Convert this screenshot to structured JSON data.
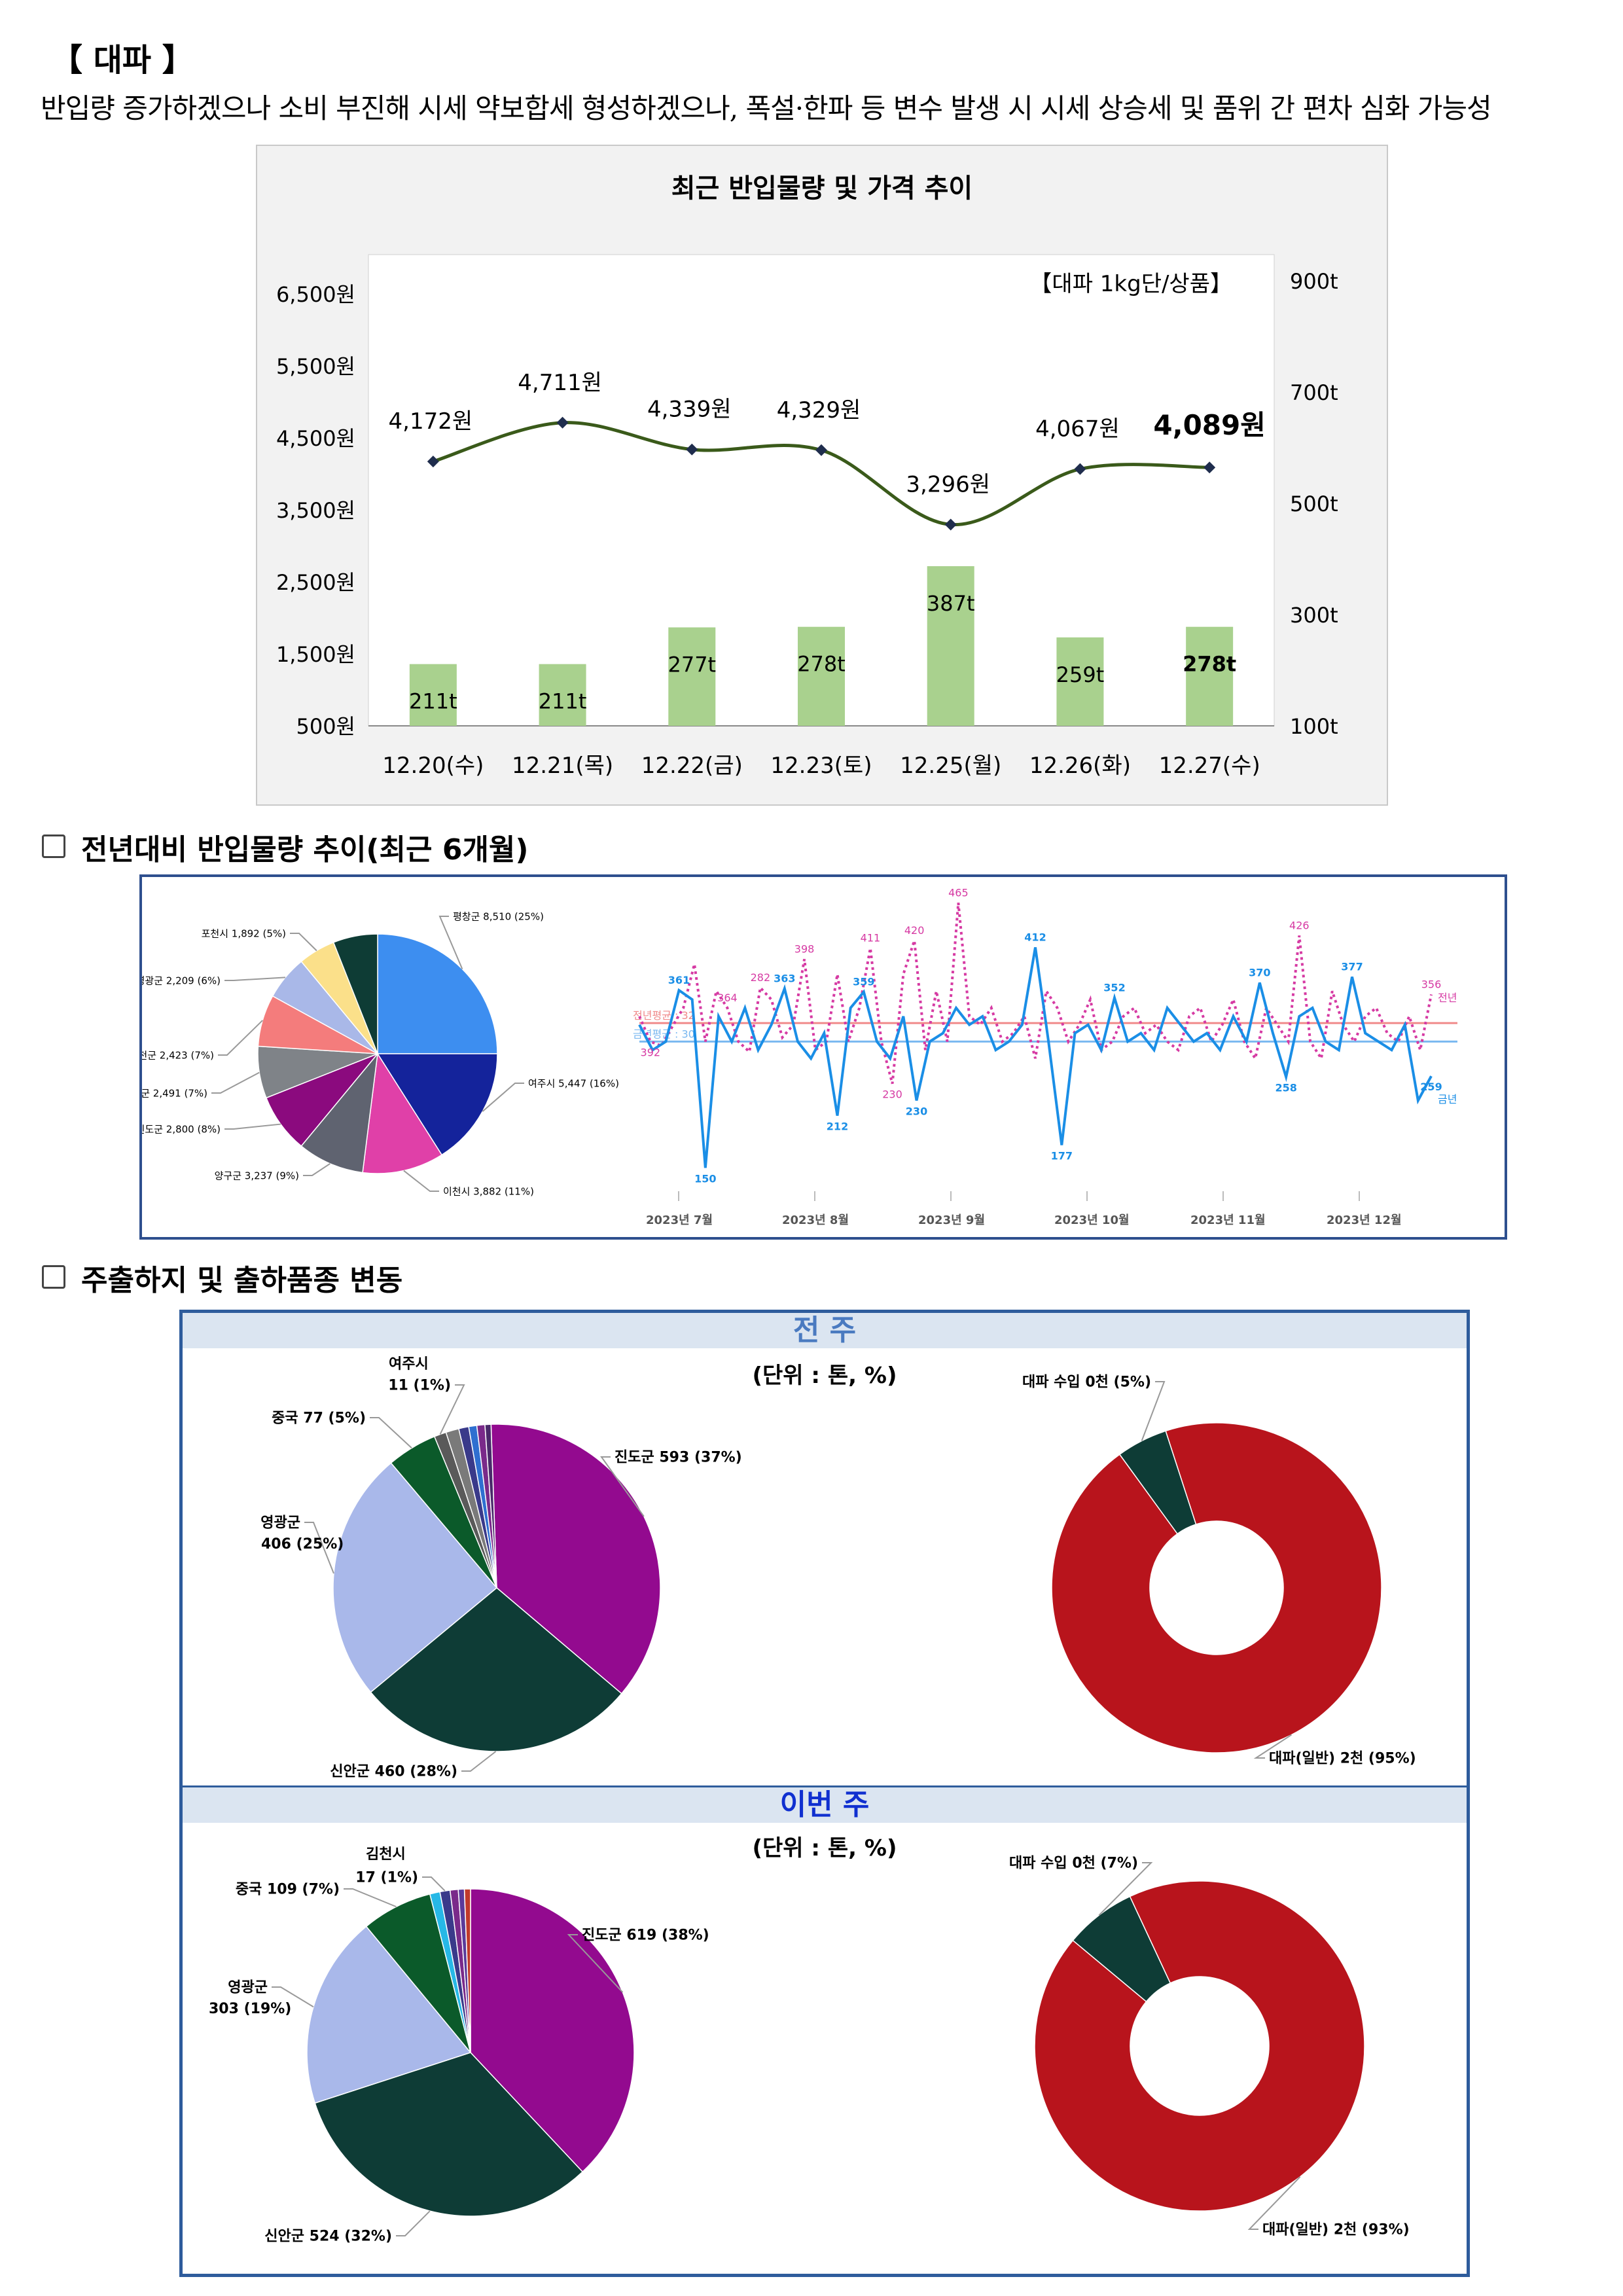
{
  "heading": "【 대파 】",
  "summary": "반입량 증가하겠으나 소비 부진해 시세 약보합세 형성하겠으나, 폭설·한파 등 변수 발생 시 시세 상승세 및 품위 간 편차 심화 가능성",
  "chart_data": [
    {
      "type": "bar+line",
      "title": "최근 반입물량 및 가격 추이",
      "annotation": "【대파 1kg단/상품】",
      "categories": [
        "12.20(수)",
        "12.21(목)",
        "12.22(금)",
        "12.23(토)",
        "12.25(월)",
        "12.26(화)",
        "12.27(수)"
      ],
      "series": [
        {
          "name": "price",
          "type": "line",
          "values": [
            4172,
            4711,
            4339,
            4329,
            3296,
            4067,
            4089
          ],
          "labels": [
            "4,172원",
            "4,711원",
            "4,339원",
            "4,329원",
            "3,296원",
            "4,067원",
            "4,089원"
          ]
        },
        {
          "name": "volume",
          "type": "bar",
          "values": [
            211,
            211,
            277,
            278,
            387,
            259,
            278
          ],
          "labels": [
            "211t",
            "211t",
            "277t",
            "278t",
            "387t",
            "259t",
            "278t"
          ]
        }
      ],
      "y_left": {
        "ticks": [
          "6,500원",
          "5,500원",
          "4,500원",
          "3,500원",
          "2,500원",
          "1,500원",
          "500원"
        ],
        "range": [
          500,
          6500
        ]
      },
      "y_right": {
        "ticks": [
          "900t",
          "700t",
          "500t",
          "300t",
          "100t"
        ],
        "range": [
          100,
          900
        ]
      },
      "colors": {
        "line": "#3a5a1a",
        "bar": "#a9d18e",
        "marker": "#1f2d4d"
      }
    },
    {
      "type": "pie",
      "slices": [
        {
          "label": "평창군 8,510 (25%)",
          "value": 25,
          "color": "#3d8ef0"
        },
        {
          "label": "여주시 5,447 (16%)",
          "value": 16,
          "color": "#14239b"
        },
        {
          "label": "이천시 3,882 (11%)",
          "value": 11,
          "color": "#e040a8"
        },
        {
          "label": "양구군 3,237 (9%)",
          "value": 9,
          "color": "#5f6370"
        },
        {
          "label": "진도군 2,800 (8%)",
          "value": 8,
          "color": "#8b0a7e"
        },
        {
          "label": "철원군 2,491 (7%)",
          "value": 7,
          "color": "#7f8388"
        },
        {
          "label": "홍천군 2,423 (7%)",
          "value": 7,
          "color": "#f47c7c"
        },
        {
          "label": "영광군 2,209 (6%)",
          "value": 6,
          "color": "#a9b8e8"
        },
        {
          "label": "포천시 1,892 (5%)",
          "value": 5,
          "color": "#fbe08a"
        },
        {
          "label": "",
          "value": 6,
          "color": "#0e3c35"
        }
      ]
    },
    {
      "type": "line",
      "x_labels": [
        "2023년 7월",
        "2023년 8월",
        "2023년 9월",
        "2023년 10월",
        "2023년 11월",
        "2023년 12월"
      ],
      "series": [
        {
          "name": "전년",
          "values": [
            330,
            300,
            295,
            318,
            340,
            392,
            300,
            360,
            340,
            300,
            288,
            364,
            350,
            305,
            320,
            398,
            290,
            300,
            380,
            300,
            340,
            411,
            300,
            250,
            380,
            420,
            290,
            360,
            300,
            465,
            330,
            320,
            340,
            300,
            310,
            330,
            280,
            360,
            340,
            300,
            320,
            350,
            290,
            300,
            330,
            340,
            310,
            320,
            300,
            290,
            330,
            340,
            300,
            320,
            350,
            300,
            280,
            340,
            320,
            300,
            426,
            300,
            280,
            360,
            320,
            300,
            330,
            340,
            310,
            300,
            330,
            290,
            356
          ]
        },
        {
          "name": "금년",
          "values": [
            320,
            290,
            300,
            361,
            350,
            150,
            330,
            300,
            340,
            290,
            320,
            363,
            300,
            280,
            310,
            212,
            340,
            359,
            300,
            280,
            330,
            230,
            300,
            310,
            340,
            320,
            330,
            290,
            300,
            320,
            412,
            300,
            177,
            310,
            320,
            290,
            352,
            300,
            310,
            290,
            340,
            320,
            300,
            310,
            290,
            330,
            300,
            370,
            310,
            258,
            330,
            340,
            300,
            290,
            377,
            310,
            300,
            290,
            320,
            230,
            259
          ]
        }
      ],
      "point_labels": [
        "361",
        "150",
        "392",
        "282",
        "364",
        "363",
        "398",
        "212",
        "359",
        "411",
        "420",
        "230",
        "465",
        "412",
        "177",
        "352",
        "370",
        "258",
        "426",
        "377",
        "356",
        "259",
        "230"
      ],
      "legend": [
        "전년",
        "금년"
      ],
      "ref_labels": [
        "전년평균 : 32",
        "금년평균 : 30"
      ],
      "colors": {
        "prev": "#d63aa3",
        "curr": "#1a8ee6",
        "prev_avg": "#f08a8a",
        "curr_avg": "#7ab8f0"
      }
    },
    {
      "type": "pie",
      "group": "전 주",
      "unit": "(단위 : 톤, %)",
      "slices": [
        {
          "label": "진도군 593 (37%)",
          "value": 37,
          "color": "#930a8f"
        },
        {
          "label": "신안군 460 (28%)",
          "value": 28,
          "color": "#0e3c36"
        },
        {
          "label": "영광군 406 (25%)",
          "value": 25,
          "color": "#a9b8ea"
        },
        {
          "label": "중국 77 (5%)",
          "value": 5,
          "color": "#0b5a2a"
        },
        {
          "label": "여주시 11 (1%)",
          "value": 1.2,
          "color": "#5a5a5a"
        },
        {
          "label": "",
          "value": 1.3,
          "color": "#7a7a7a"
        },
        {
          "label": "",
          "value": 1,
          "color": "#3a3a8a"
        },
        {
          "label": "",
          "value": 0.8,
          "color": "#2f6fd0"
        },
        {
          "label": "",
          "value": 0.8,
          "color": "#7a2a8a"
        },
        {
          "label": "",
          "value": 0.6,
          "color": "#4a2a6a"
        }
      ]
    },
    {
      "type": "pie",
      "group": "전 주",
      "donut": true,
      "slices": [
        {
          "label": "대파(일반) 2천 (95%)",
          "value": 95,
          "color": "#b8141c"
        },
        {
          "label": "대파 수입 0천 (5%)",
          "value": 5,
          "color": "#0e3c36"
        }
      ]
    },
    {
      "type": "pie",
      "group": "이번 주",
      "unit": "(단위 : 톤, %)",
      "slices": [
        {
          "label": "진도군 619 (38%)",
          "value": 38,
          "color": "#930a8f"
        },
        {
          "label": "신안군 524 (32%)",
          "value": 32,
          "color": "#0e3c36"
        },
        {
          "label": "영광군 303 (19%)",
          "value": 19,
          "color": "#a9b8ea"
        },
        {
          "label": "중국 109 (7%)",
          "value": 7,
          "color": "#0b5a2a"
        },
        {
          "label": "",
          "value": 1,
          "color": "#27b8e6"
        },
        {
          "label": "김천시 17 (1%)",
          "value": 1,
          "color": "#3a3a8a"
        },
        {
          "label": "",
          "value": 0.8,
          "color": "#7a2a8a"
        },
        {
          "label": "",
          "value": 0.6,
          "color": "#5a3a9a"
        },
        {
          "label": "",
          "value": 0.6,
          "color": "#c0392b"
        }
      ]
    },
    {
      "type": "pie",
      "group": "이번 주",
      "donut": true,
      "slices": [
        {
          "label": "대파(일반) 2천 (93%)",
          "value": 93,
          "color": "#b8141c"
        },
        {
          "label": "대파 수입 0천 (7%)",
          "value": 7,
          "color": "#0e3c36"
        }
      ]
    }
  ],
  "sections": {
    "yoy_title": "전년대비 반입물량 추이(최근 6개월)",
    "origin_title": "주출하지 및 출하품종 변동",
    "prev_week": "전 주",
    "this_week": "이번 주",
    "unit": "(단위 : 톤, %)"
  }
}
